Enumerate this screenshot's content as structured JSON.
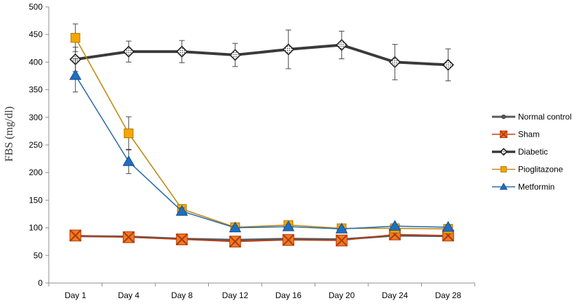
{
  "chart_data": {
    "type": "line",
    "title": "",
    "xlabel": "",
    "ylabel": "FBS (mg/dl)",
    "categories": [
      "Day 1",
      "Day 4",
      "Day 8",
      "Day 12",
      "Day 16",
      "Day 20",
      "Day 24",
      "Day 28"
    ],
    "ylim": [
      0,
      500
    ],
    "yticks": [
      0,
      50,
      100,
      150,
      200,
      250,
      300,
      350,
      400,
      450,
      500
    ],
    "grid": false,
    "legend_position": "right",
    "series": [
      {
        "name": "Normal control",
        "color": "#5a5a5a",
        "marker": "circle",
        "values": [
          85,
          84,
          80,
          78,
          80,
          79,
          86,
          85
        ],
        "errors": [
          4,
          4,
          4,
          4,
          4,
          4,
          4,
          4
        ]
      },
      {
        "name": "Sham",
        "color": "#c0390f",
        "marker": "square-x",
        "values": [
          86,
          83,
          79,
          75,
          78,
          77,
          88,
          86
        ],
        "errors": [
          5,
          5,
          5,
          5,
          5,
          5,
          5,
          5
        ]
      },
      {
        "name": "Diabetic",
        "color": "#3a3a3a",
        "marker": "diamond",
        "values": [
          405,
          419,
          419,
          413,
          423,
          431,
          400,
          395
        ],
        "errors": [
          22,
          19,
          20,
          21,
          35,
          25,
          32,
          29
        ]
      },
      {
        "name": "Pioglitazone",
        "color": "#f5a600",
        "line_color": "#c08a12",
        "marker": "square",
        "values": [
          444,
          271,
          134,
          101,
          105,
          99,
          99,
          98
        ],
        "errors": [
          25,
          30,
          8,
          4,
          4,
          4,
          4,
          4
        ]
      },
      {
        "name": "Metformin",
        "color": "#1f6fc0",
        "line_color": "#2f6ea8",
        "marker": "triangle",
        "values": [
          376,
          220,
          130,
          100,
          102,
          98,
          103,
          101
        ],
        "errors": [
          30,
          22,
          6,
          4,
          4,
          4,
          4,
          4
        ]
      }
    ]
  }
}
